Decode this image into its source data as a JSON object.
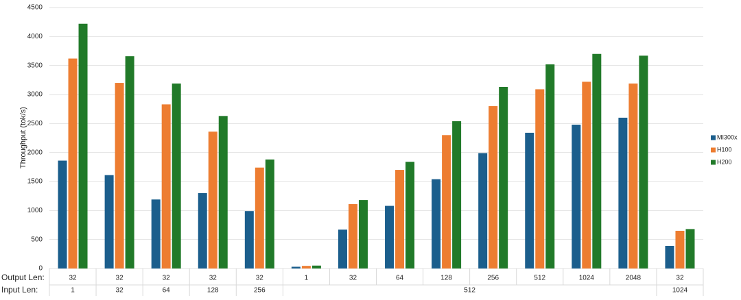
{
  "chart_data": {
    "type": "bar",
    "y_label": "Throughput (tok/s)",
    "row_labels": [
      "Output Len:",
      "Input Len:"
    ],
    "categories": [
      "32",
      "32",
      "32",
      "32",
      "32",
      "1",
      "32",
      "64",
      "128",
      "256",
      "512",
      "1024",
      "2048",
      "32"
    ],
    "input_groups": [
      {
        "label": "1",
        "span": 1
      },
      {
        "label": "32",
        "span": 1
      },
      {
        "label": "64",
        "span": 1
      },
      {
        "label": "128",
        "span": 1
      },
      {
        "label": "256",
        "span": 1
      },
      {
        "label": "512",
        "span": 8
      },
      {
        "label": "1024",
        "span": 1
      }
    ],
    "series": [
      {
        "name": "MI300x",
        "color": "#1b5e8c",
        "values": [
          1860,
          1610,
          1190,
          1300,
          990,
          30,
          670,
          1080,
          1540,
          1990,
          2340,
          2480,
          2600,
          390
        ]
      },
      {
        "name": "H100",
        "color": "#ed7d31",
        "values": [
          3620,
          3200,
          2830,
          2360,
          1740,
          45,
          1110,
          1700,
          2300,
          2800,
          3090,
          3220,
          3190,
          650
        ]
      },
      {
        "name": "H200",
        "color": "#217a29",
        "values": [
          4220,
          3660,
          3190,
          2630,
          1880,
          50,
          1180,
          1840,
          2540,
          3130,
          3520,
          3700,
          3670,
          680
        ]
      }
    ],
    "ylim": [
      0,
      4500
    ],
    "yticks": [
      0,
      500,
      1000,
      1500,
      2000,
      2500,
      3000,
      3500,
      4000,
      4500
    ],
    "grid": true,
    "legend": "right"
  }
}
